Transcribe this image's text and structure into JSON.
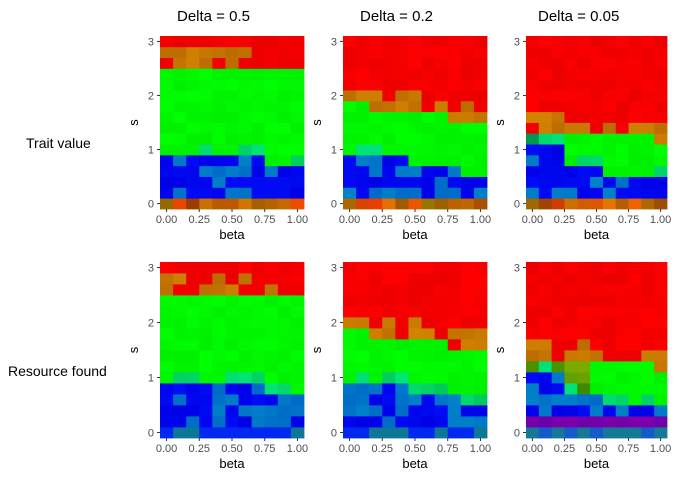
{
  "column_titles": [
    "Delta = 0.5",
    "Delta = 0.2",
    "Delta = 0.05"
  ],
  "row_labels": [
    "Trait value",
    "Resource found"
  ],
  "palette": {
    "panel_background": "#ebebeb",
    "grid": "#ffffff",
    "tick_text": "#4d4d4d",
    "tick_mark": "#333333",
    "red": "#ff0000",
    "green": "#00ff00",
    "blue": "#0000ff"
  },
  "chart_data": [
    {
      "type": "heatmap",
      "row": "Trait value",
      "column": "Delta = 0.5",
      "xlabel": "beta",
      "ylabel": "s",
      "x_ticks": [
        "0.00",
        "0.25",
        "0.50",
        "0.75",
        "1.00"
      ],
      "y_ticks": [
        "0",
        "1",
        "2",
        "3"
      ],
      "xlim": [
        -0.05,
        1.05
      ],
      "ylim": [
        -0.1,
        3.1
      ],
      "color_encoding": "red-green-blue mixture per cell",
      "regions": [
        {
          "label": "red",
          "s_range": [
            2.6,
            3.1
          ]
        },
        {
          "label": "green",
          "s_range": [
            0.7,
            2.5
          ],
          "note": "lower boundary rises with beta"
        },
        {
          "label": "blue",
          "s_range": [
            0.1,
            0.9
          ]
        },
        {
          "label": "red-green mix",
          "s_range": [
            -0.1,
            0.1
          ]
        }
      ]
    },
    {
      "type": "heatmap",
      "row": "Trait value",
      "column": "Delta = 0.2",
      "xlabel": "beta",
      "ylabel": "s",
      "x_ticks": [
        "0.00",
        "0.25",
        "0.50",
        "0.75",
        "1.00"
      ],
      "y_ticks": [
        "0",
        "1",
        "2",
        "3"
      ],
      "xlim": [
        -0.05,
        1.05
      ],
      "ylim": [
        -0.1,
        3.1
      ],
      "color_encoding": "red-green-blue mixture per cell",
      "regions": [
        {
          "label": "red",
          "s_range": [
            1.8,
            3.1
          ]
        },
        {
          "label": "green",
          "s_range": [
            0.6,
            2.0
          ]
        },
        {
          "label": "blue",
          "s_range": [
            0.1,
            0.9
          ]
        },
        {
          "label": "red-green mix",
          "s_range": [
            -0.1,
            0.1
          ]
        }
      ]
    },
    {
      "type": "heatmap",
      "row": "Trait value",
      "column": "Delta = 0.05",
      "xlabel": "beta",
      "ylabel": "s",
      "x_ticks": [
        "0.00",
        "0.25",
        "0.50",
        "0.75",
        "1.00"
      ],
      "y_ticks": [
        "0",
        "1",
        "2",
        "3"
      ],
      "xlim": [
        -0.05,
        1.05
      ],
      "ylim": [
        -0.1,
        3.1
      ],
      "color_encoding": "red-green-blue mixture per cell",
      "regions": [
        {
          "label": "red",
          "s_range": [
            1.3,
            3.1
          ]
        },
        {
          "label": "green",
          "s_range": [
            0.5,
            1.6
          ]
        },
        {
          "label": "blue",
          "s_range": [
            0.1,
            1.2
          ]
        },
        {
          "label": "red-green mix",
          "s_range": [
            -0.1,
            0.1
          ]
        }
      ]
    },
    {
      "type": "heatmap",
      "row": "Resource found",
      "column": "Delta = 0.5",
      "xlabel": "beta",
      "ylabel": "s",
      "x_ticks": [
        "0.00",
        "0.25",
        "0.50",
        "0.75",
        "1.00"
      ],
      "y_ticks": [
        "0",
        "1",
        "2",
        "3"
      ],
      "xlim": [
        -0.05,
        1.05
      ],
      "ylim": [
        -0.1,
        3.1
      ],
      "color_encoding": "red-green-blue mixture per cell",
      "regions": [
        {
          "label": "red",
          "s_range": [
            2.6,
            3.1
          ]
        },
        {
          "label": "green",
          "s_range": [
            0.6,
            2.5
          ]
        },
        {
          "label": "blue",
          "s_range": [
            -0.1,
            1.1
          ]
        }
      ]
    },
    {
      "type": "heatmap",
      "row": "Resource found",
      "column": "Delta = 0.2",
      "xlabel": "beta",
      "ylabel": "s",
      "x_ticks": [
        "0.00",
        "0.25",
        "0.50",
        "0.75",
        "1.00"
      ],
      "y_ticks": [
        "0",
        "1",
        "2",
        "3"
      ],
      "xlim": [
        -0.05,
        1.05
      ],
      "ylim": [
        -0.1,
        3.1
      ],
      "color_encoding": "red-green-blue mixture per cell",
      "regions": [
        {
          "label": "red",
          "s_range": [
            1.8,
            3.1
          ]
        },
        {
          "label": "green",
          "s_range": [
            0.6,
            2.0
          ]
        },
        {
          "label": "blue",
          "s_range": [
            -0.1,
            1.0
          ]
        }
      ]
    },
    {
      "type": "heatmap",
      "row": "Resource found",
      "column": "Delta = 0.05",
      "xlabel": "beta",
      "ylabel": "s",
      "x_ticks": [
        "0.00",
        "0.25",
        "0.50",
        "0.75",
        "1.00"
      ],
      "y_ticks": [
        "0",
        "1",
        "2",
        "3"
      ],
      "xlim": [
        -0.05,
        1.05
      ],
      "ylim": [
        -0.1,
        3.1
      ],
      "color_encoding": "red-green-blue mixture per cell",
      "regions": [
        {
          "label": "red",
          "s_range": [
            1.3,
            3.1
          ]
        },
        {
          "label": "olive/green",
          "s_range": [
            0.5,
            1.6
          ]
        },
        {
          "label": "purple",
          "s_range": [
            0.1,
            0.3
          ]
        },
        {
          "label": "blue/teal",
          "s_range": [
            -0.1,
            0.3
          ]
        }
      ]
    }
  ]
}
